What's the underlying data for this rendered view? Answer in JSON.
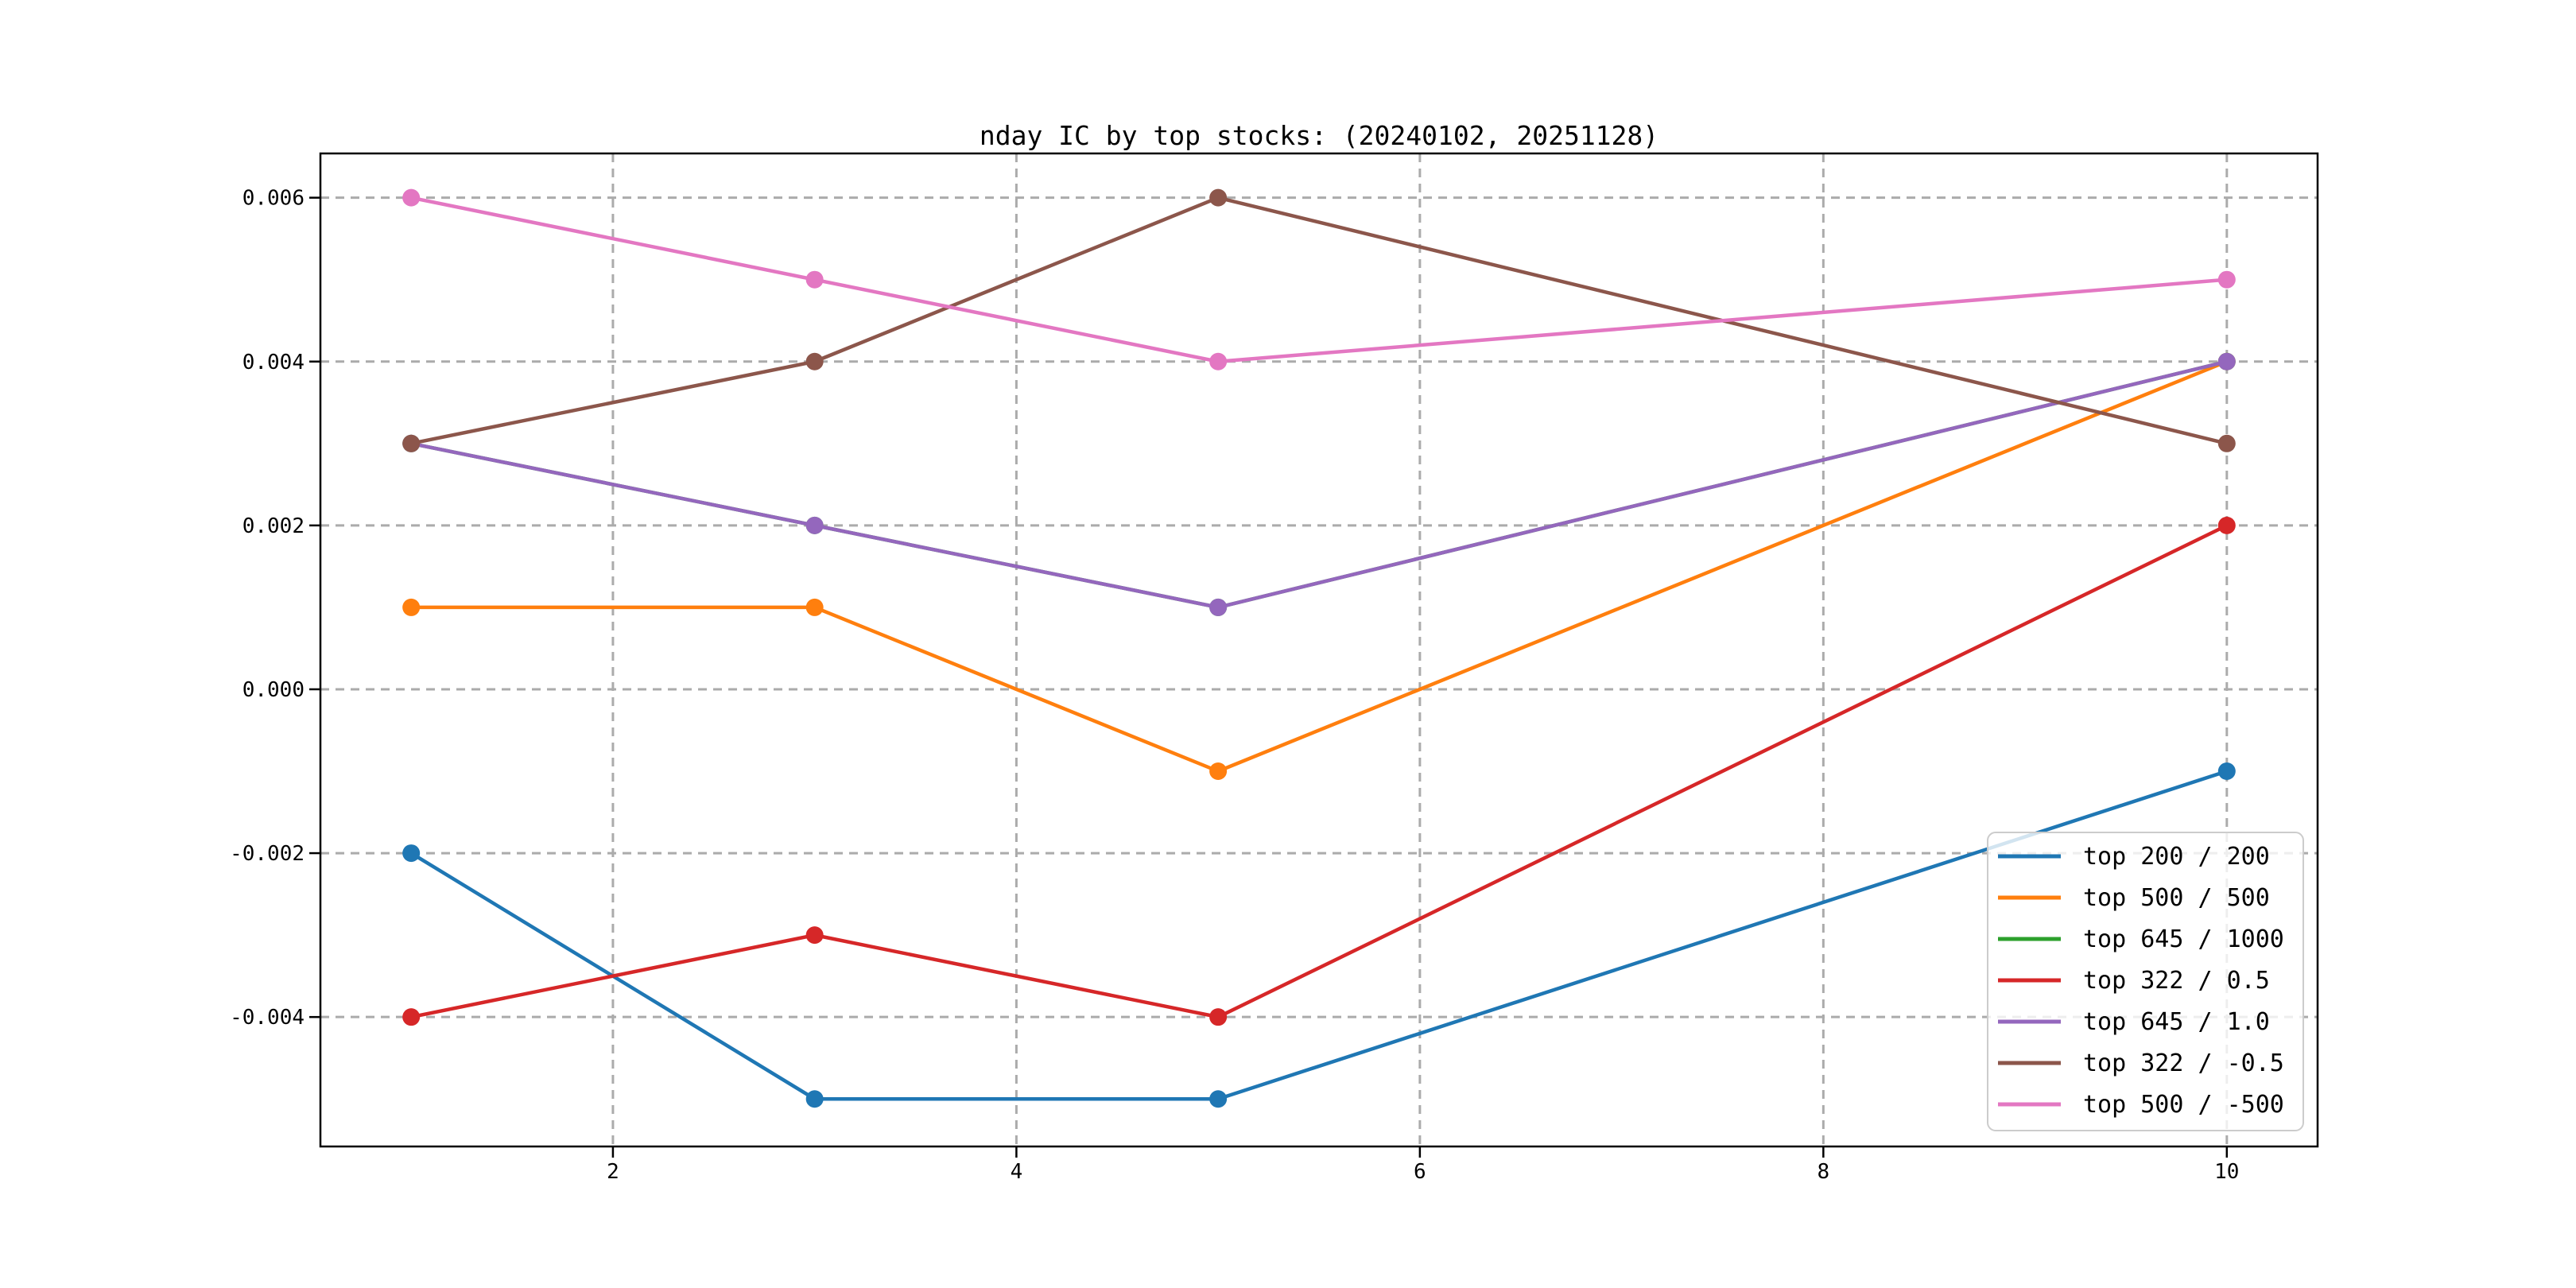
{
  "figure": {
    "title": "nday IC by top stocks: (20240102, 20251128)"
  },
  "chart_data": {
    "type": "line",
    "title": "nday IC by top stocks: (20240102, 20251128)",
    "x": [
      1,
      3,
      5,
      10
    ],
    "series": [
      {
        "name": "top 200 / 200",
        "color": "#1f77b4",
        "values": [
          -0.002,
          -0.005,
          -0.005,
          -0.001
        ]
      },
      {
        "name": "top 500 / 500",
        "color": "#ff7f0e",
        "values": [
          0.001,
          0.001,
          -0.001,
          0.004
        ]
      },
      {
        "name": "top 645 / 1000",
        "color": "#2ca02c",
        "values": [
          0.003,
          0.002,
          0.001,
          0.004
        ]
      },
      {
        "name": "top 322 / 0.5",
        "color": "#d62728",
        "values": [
          -0.004,
          -0.003,
          -0.004,
          0.002
        ]
      },
      {
        "name": "top 645 / 1.0",
        "color": "#9467bd",
        "values": [
          0.003,
          0.002,
          0.001,
          0.004
        ]
      },
      {
        "name": "top 322 / -0.5",
        "color": "#8c564b",
        "values": [
          0.003,
          0.004,
          0.006,
          0.003
        ]
      },
      {
        "name": "top 500 / -500",
        "color": "#e377c2",
        "values": [
          0.006,
          0.005,
          0.004,
          0.005
        ]
      }
    ],
    "xticks": [
      2,
      4,
      6,
      8,
      10
    ],
    "xtick_labels": [
      "2",
      "4",
      "6",
      "8",
      "10"
    ],
    "yticks": [
      0.006,
      0.004,
      0.002,
      0,
      -0.002,
      -0.004
    ],
    "ytick_labels": [
      "0.006",
      "0.004",
      "0.002",
      "0.000",
      "-0.002",
      "-0.004"
    ],
    "xlim": [
      0.55,
      10.45
    ],
    "ylim": [
      -0.00558,
      0.00654
    ],
    "xlabel": "",
    "ylabel": "",
    "grid": true,
    "grid_style": "dashed",
    "marker": "o",
    "legend_position": "lower right"
  },
  "style": {
    "background": "#ffffff",
    "spine_color": "#000000",
    "grid_color": "#ababab",
    "tick_color": "#000000",
    "text_color": "#000000",
    "legend_border_color": "#cccccc",
    "legend_bg": "#ffffff"
  }
}
